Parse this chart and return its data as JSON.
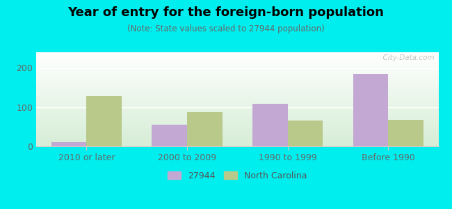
{
  "title": "Year of entry for the foreign-born population",
  "subtitle": "(Note: State values scaled to 27944 population)",
  "categories": [
    "2010 or later",
    "2000 to 2009",
    "1990 to 1999",
    "Before 1990"
  ],
  "values_27944": [
    10,
    55,
    108,
    185
  ],
  "values_nc": [
    128,
    88,
    65,
    68
  ],
  "color_27944": "#c4a8d4",
  "color_nc": "#b8c98a",
  "background_color": "#00eeee",
  "ylim": [
    0,
    240
  ],
  "yticks": [
    0,
    100,
    200
  ],
  "bar_width": 0.35,
  "legend_label_27944": "27944",
  "legend_label_nc": "North Carolina",
  "watermark": "  City-Data.com",
  "title_fontsize": 13,
  "subtitle_fontsize": 8.5,
  "tick_fontsize": 9,
  "legend_fontsize": 9
}
